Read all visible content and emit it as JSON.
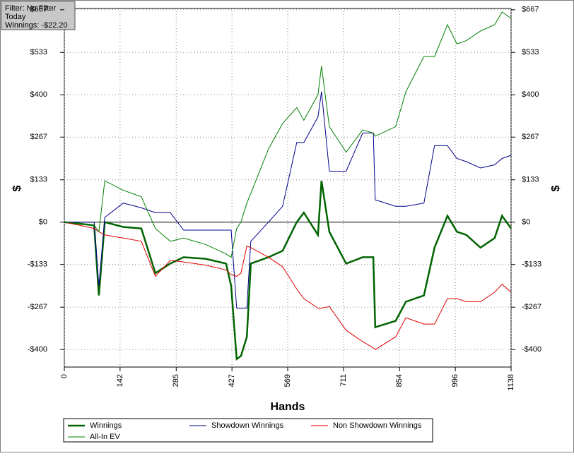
{
  "chart_data": {
    "type": "line",
    "annotations": [
      "Filter: No Filter",
      "Today",
      "Winnings: -$22.20"
    ],
    "xlabel": "Hands",
    "ylabel": "$",
    "y2label": "$",
    "xlim": [
      0,
      1138
    ],
    "xticks": [
      0,
      142,
      285,
      427,
      569,
      711,
      854,
      996,
      1138
    ],
    "ylim": [
      -455,
      671
    ],
    "yticks": [
      {
        "value": 667,
        "label": "$667"
      },
      {
        "value": 533,
        "label": "$533"
      },
      {
        "value": 400,
        "label": "$400"
      },
      {
        "value": 267,
        "label": "$267"
      },
      {
        "value": 133,
        "label": "$133"
      },
      {
        "value": 0,
        "label": "$0"
      },
      {
        "value": -133,
        "label": "-$133"
      },
      {
        "value": -267,
        "label": "-$267"
      },
      {
        "value": -400,
        "label": "-$400"
      }
    ],
    "grid": true,
    "legend": "bottom",
    "x": [
      0,
      40,
      76,
      88,
      103,
      150,
      196,
      232,
      270,
      304,
      360,
      412,
      425,
      439,
      450,
      465,
      475,
      520,
      556,
      592,
      610,
      646,
      655,
      675,
      718,
      760,
      787,
      792,
      844,
      870,
      916,
      943,
      976,
      1000,
      1024,
      1060,
      1096,
      1115,
      1138
    ],
    "series": [
      {
        "name": "Winnings",
        "color": "#006400",
        "width": 2.5,
        "values": [
          0,
          -5,
          -10,
          -230,
          0,
          -15,
          -20,
          -160,
          -130,
          -110,
          -115,
          -130,
          -200,
          -430,
          -420,
          -360,
          -130,
          -110,
          -90,
          0,
          30,
          -40,
          130,
          -30,
          -130,
          -110,
          -110,
          -330,
          -310,
          -250,
          -230,
          -80,
          20,
          -30,
          -40,
          -80,
          -50,
          20,
          -20
        ]
      },
      {
        "name": "Showdown Winnings",
        "color": "#00008b",
        "width": 1,
        "values": [
          0,
          0,
          0,
          -200,
          15,
          60,
          45,
          30,
          30,
          -25,
          -25,
          -25,
          -25,
          -270,
          -270,
          -270,
          -60,
          0,
          50,
          250,
          250,
          330,
          410,
          160,
          160,
          280,
          280,
          70,
          50,
          50,
          60,
          240,
          240,
          200,
          190,
          170,
          180,
          200,
          210
        ]
      },
      {
        "name": "Non Showdown Winnings",
        "color": "#e00000",
        "width": 1,
        "values": [
          0,
          -10,
          -20,
          -30,
          -40,
          -50,
          -60,
          -170,
          -120,
          -125,
          -135,
          -150,
          -165,
          -170,
          -160,
          -75,
          -80,
          -110,
          -140,
          -210,
          -240,
          -270,
          -270,
          -265,
          -340,
          -375,
          -395,
          -400,
          -360,
          -300,
          -320,
          -320,
          -240,
          -240,
          -250,
          -250,
          -220,
          -195,
          -220
        ]
      },
      {
        "name": "All-In EV",
        "color": "#008000",
        "width": 1,
        "values": [
          0,
          -5,
          -10,
          -30,
          130,
          100,
          80,
          -20,
          -60,
          -50,
          -70,
          -100,
          -110,
          -20,
          0,
          60,
          90,
          230,
          310,
          360,
          320,
          400,
          490,
          300,
          220,
          290,
          280,
          270,
          300,
          410,
          520,
          520,
          620,
          560,
          570,
          600,
          620,
          660,
          640
        ]
      }
    ]
  }
}
